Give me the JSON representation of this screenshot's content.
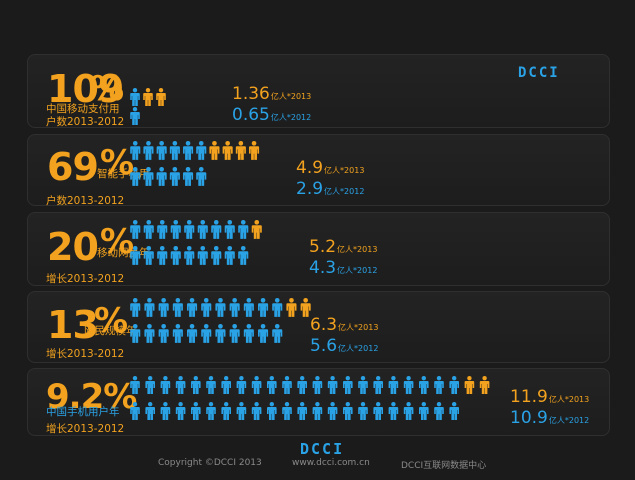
{
  "brand": {
    "logo_text": "DCCI",
    "accent_orange": "#f2a21e",
    "accent_blue": "#2aa2e6"
  },
  "footer": {
    "copyright": "Copyright ©DCCI 2013",
    "website": "www.dcci.com.cn",
    "org": "DCCI互联网数据中心"
  },
  "chart_data": {
    "type": "bar",
    "title": "",
    "unit": "亿人",
    "legend": [
      "2013",
      "2012"
    ],
    "series": [
      {
        "name": "2013",
        "values": [
          1.36,
          4.9,
          5.2,
          6.3,
          11.9
        ]
      },
      {
        "name": "2012",
        "values": [
          0.65,
          2.9,
          4.3,
          5.6,
          10.9
        ]
      }
    ],
    "rows": [
      {
        "pct": "109",
        "pct_sign": "%",
        "label_cn": "中国移动支付用",
        "label_year": "户数2013-2012",
        "value_2013": "1.36",
        "value_2012": "0.65",
        "unit_2013": "亿人*2013",
        "unit_2012": "亿人*2012"
      },
      {
        "pct": "69",
        "pct_sign": "%",
        "label_cn": "智能手机用",
        "label_year": "户数2013-2012",
        "value_2013": "4.9",
        "value_2012": "2.9",
        "unit_2013": "亿人*2013",
        "unit_2012": "亿人*2012"
      },
      {
        "pct": "20",
        "pct_sign": "%",
        "label_cn": "移动网民年",
        "label_year": "增长2013-2012",
        "value_2013": "5.2",
        "value_2012": "4.3",
        "unit_2013": "亿人*2013",
        "unit_2012": "亿人*2012"
      },
      {
        "pct": "13",
        "pct_sign": "%",
        "label_cn": "网民规模年",
        "label_year": "增长2013-2012",
        "value_2013": "6.3",
        "value_2012": "5.6",
        "unit_2013": "亿人*2013",
        "unit_2012": "亿人*2012"
      },
      {
        "pct": "9.2%",
        "pct_sign": "",
        "label_cn": "中国手机用户年",
        "label_year": "增长2013-2012",
        "value_2013": "11.9",
        "value_2012": "10.9",
        "unit_2013": "亿人*2013",
        "unit_2012": "亿人*2012"
      }
    ]
  }
}
